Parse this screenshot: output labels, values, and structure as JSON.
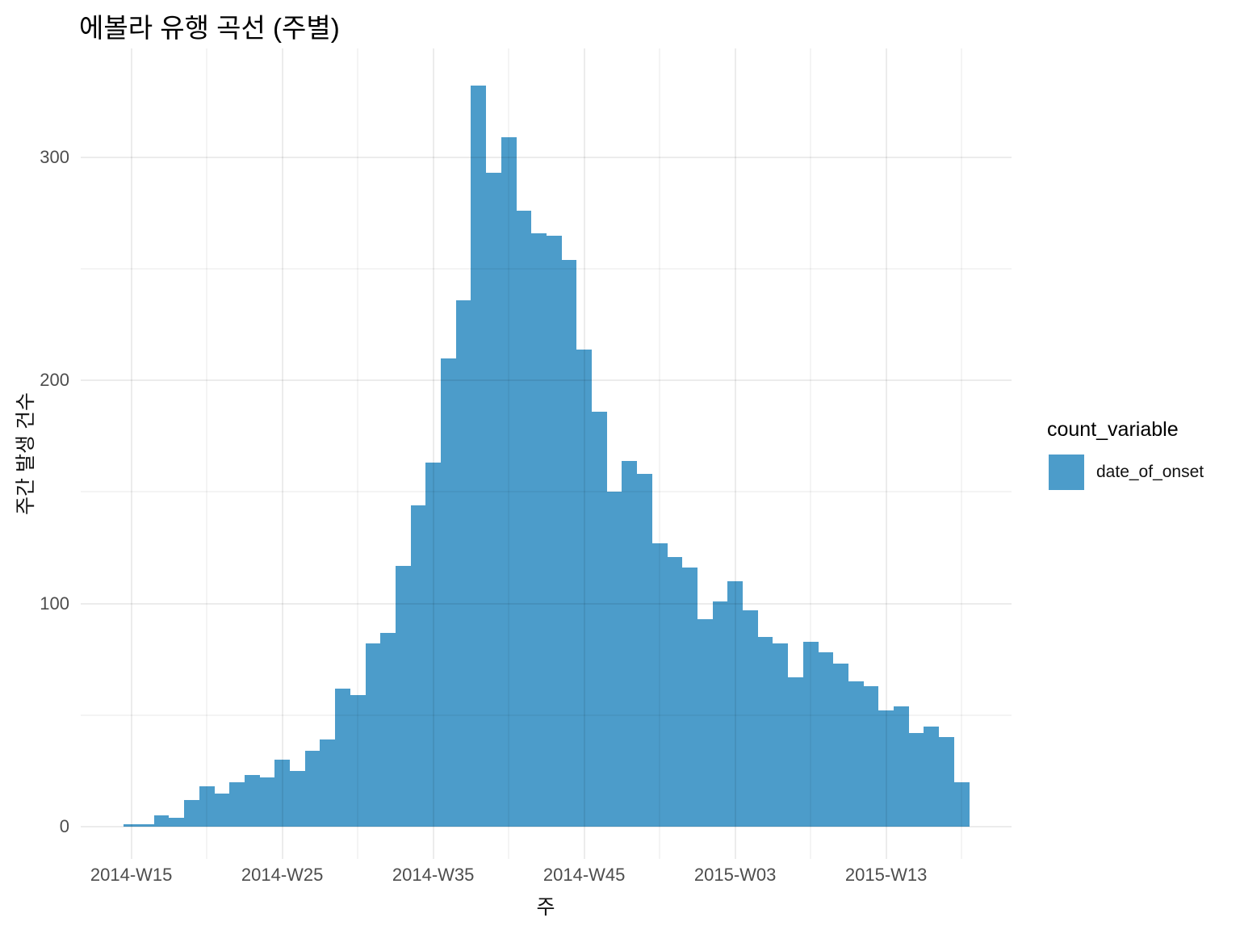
{
  "title": "에볼라 유행 곡선 (주별)",
  "axes": {
    "x_title": "주",
    "y_title": "주간 발생 건수",
    "x_ticks": [
      "2014-W15",
      "2014-W25",
      "2014-W35",
      "2014-W45",
      "2015-W03",
      "2015-W13"
    ],
    "y_ticks": [
      "0",
      "100",
      "200",
      "300"
    ]
  },
  "legend": {
    "title": "count_variable",
    "items": [
      {
        "label": "date_of_onset",
        "color": "#4C9CCA"
      }
    ]
  },
  "colors": {
    "bar": "#4C9CCA",
    "background": "#FFFFFF",
    "axis_text": "#4D4D4D",
    "text": "#000000"
  },
  "chart_data": {
    "type": "bar",
    "title": "에볼라 유행 곡선 (주별)",
    "xlabel": "주",
    "ylabel": "주간 발생 건수",
    "legend_title": "count_variable",
    "series_name": "date_of_onset",
    "ylim": [
      0,
      350
    ],
    "grid": true,
    "legend_position": "right",
    "x_tick_labels": [
      "2014-W15",
      "2014-W25",
      "2014-W35",
      "2014-W45",
      "2015-W03",
      "2015-W13"
    ],
    "y_tick_values": [
      0,
      100,
      200,
      300
    ],
    "categories": [
      "2014-W15",
      "2014-W16",
      "2014-W17",
      "2014-W18",
      "2014-W19",
      "2014-W20",
      "2014-W21",
      "2014-W22",
      "2014-W23",
      "2014-W24",
      "2014-W25",
      "2014-W26",
      "2014-W27",
      "2014-W28",
      "2014-W29",
      "2014-W30",
      "2014-W31",
      "2014-W32",
      "2014-W33",
      "2014-W34",
      "2014-W35",
      "2014-W36",
      "2014-W37",
      "2014-W38",
      "2014-W39",
      "2014-W40",
      "2014-W41",
      "2014-W42",
      "2014-W43",
      "2014-W44",
      "2014-W45",
      "2014-W46",
      "2014-W47",
      "2014-W48",
      "2014-W49",
      "2014-W50",
      "2014-W51",
      "2014-W52",
      "2015-W01",
      "2015-W02",
      "2015-W03",
      "2015-W04",
      "2015-W05",
      "2015-W06",
      "2015-W07",
      "2015-W08",
      "2015-W09",
      "2015-W10",
      "2015-W11",
      "2015-W12",
      "2015-W13",
      "2015-W14",
      "2015-W15",
      "2015-W16",
      "2015-W17",
      "2015-W18"
    ],
    "values": [
      1,
      1,
      5,
      4,
      12,
      18,
      15,
      20,
      23,
      22,
      30,
      25,
      34,
      39,
      62,
      59,
      82,
      87,
      117,
      144,
      163,
      210,
      236,
      332,
      293,
      309,
      276,
      266,
      265,
      254,
      214,
      186,
      150,
      164,
      158,
      127,
      121,
      116,
      93,
      101,
      110,
      97,
      85,
      82,
      67,
      83,
      78,
      73,
      65,
      63,
      52,
      54,
      42,
      45,
      40,
      20
    ]
  }
}
